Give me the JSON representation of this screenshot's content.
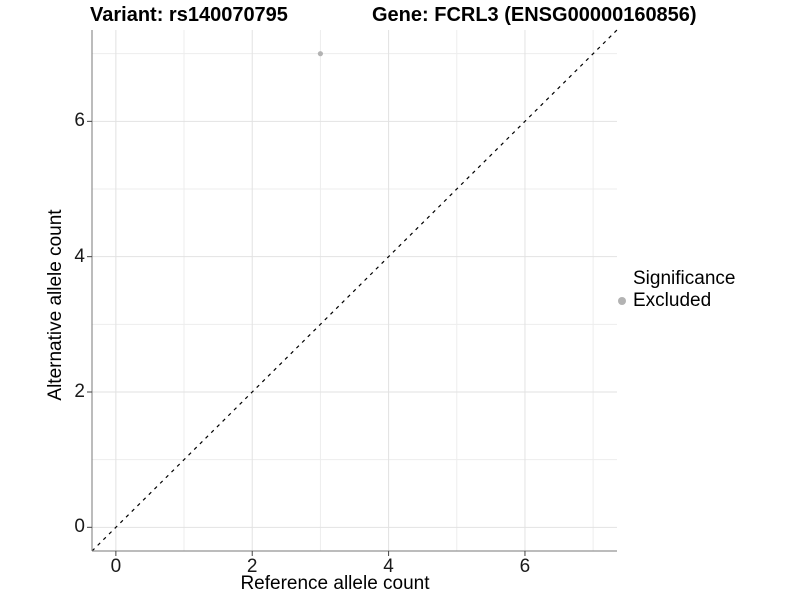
{
  "chart_data": {
    "type": "scatter",
    "titles": {
      "left": "Variant: rs140070795",
      "right": "Gene: FCRL3 (ENSG00000160856)"
    },
    "xlabel": "Reference allele count",
    "ylabel": "Alternative allele count",
    "xlim": [
      -0.35,
      7.35
    ],
    "ylim": [
      -0.35,
      7.35
    ],
    "xticks": [
      0,
      2,
      4,
      6
    ],
    "yticks": [
      0,
      2,
      4,
      6
    ],
    "grid": {
      "major": [
        0,
        2,
        4,
        6
      ],
      "minor": [
        1,
        3,
        5,
        7
      ],
      "visible": true
    },
    "identity_line": {
      "style": "dashed",
      "equation": "y = x"
    },
    "series": [
      {
        "name": "Excluded",
        "points": [
          {
            "x": 3,
            "y": 7
          }
        ],
        "color": "#b3b3b3",
        "point_radius": 2.6
      }
    ],
    "legend": {
      "title": "Significance",
      "position": "right",
      "items": [
        {
          "label": "Excluded",
          "color": "#b3b3b3"
        }
      ]
    },
    "colors": {
      "background": "#ffffff",
      "grid_major": "#e2e2e2",
      "grid_minor": "#ededed",
      "axis_line": "#7a7a7a",
      "tick_mark": "#424242",
      "dashed_line": "#000000",
      "point": "#b3b3b3"
    }
  }
}
